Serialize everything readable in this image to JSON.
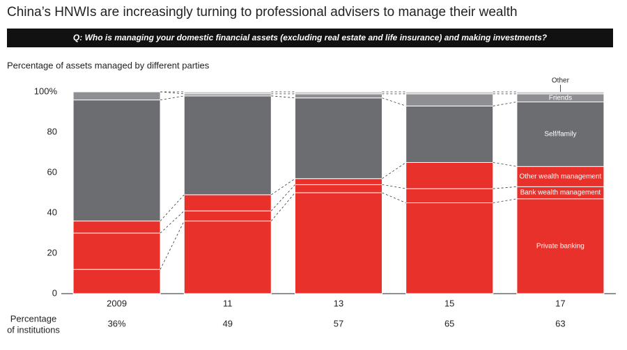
{
  "chart_data": {
    "type": "stacked-bar",
    "title": "China’s HNWIs are increasingly turning to professional advisers to manage their wealth",
    "subtitle": "Q: Who is managing your domestic financial assets (excluding real estate and life insurance) and making investments?",
    "y_label": "Percentage of assets managed by different parties",
    "categories": [
      "2009",
      "11",
      "13",
      "15",
      "17"
    ],
    "series": [
      {
        "name": "Private banking",
        "color": "#e8312a",
        "values": [
          12,
          36,
          50,
          45,
          47
        ]
      },
      {
        "name": "Bank wealth management",
        "color": "#e8312a",
        "values": [
          18,
          5,
          4,
          7,
          6
        ]
      },
      {
        "name": "Other wealth management",
        "color": "#e8312a",
        "values": [
          6,
          8,
          3,
          13,
          10
        ]
      },
      {
        "name": "Self/family",
        "color": "#6c6d70",
        "values": [
          60,
          49,
          40,
          28,
          32
        ]
      },
      {
        "name": "Friends",
        "color": "#8e8f92",
        "values": [
          4,
          1,
          2,
          6,
          4
        ]
      },
      {
        "name": "Other",
        "color": "#c4c4c4",
        "values": [
          0,
          1,
          1,
          1,
          1
        ]
      }
    ],
    "ylim": [
      0,
      100
    ],
    "yticks": [
      0,
      20,
      40,
      60,
      80,
      {
        "value": 100,
        "label": "100%"
      }
    ],
    "institutions": {
      "label": [
        "Percentage",
        "of institutions"
      ],
      "values": [
        36,
        49,
        57,
        65,
        63
      ],
      "value_labels": [
        "36%",
        "49",
        "57",
        "65",
        "63"
      ]
    }
  }
}
